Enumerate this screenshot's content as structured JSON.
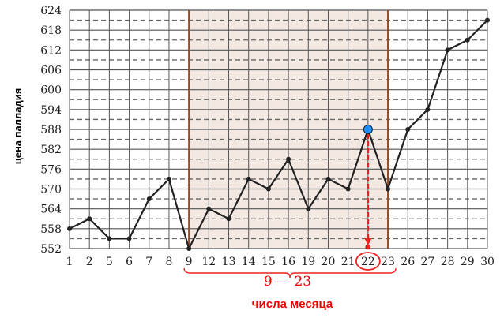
{
  "chart_data": {
    "type": "line",
    "title": "",
    "xlabel": "числа месяца",
    "ylabel": "цена палладия",
    "categories": [
      "1",
      "2",
      "5",
      "6",
      "7",
      "8",
      "9",
      "12",
      "13",
      "14",
      "15",
      "16",
      "19",
      "20",
      "21",
      "22",
      "23",
      "26",
      "27",
      "28",
      "29",
      "30"
    ],
    "series": [
      {
        "values": [
          558,
          561,
          555,
          555,
          567,
          573,
          552,
          564,
          561,
          573,
          570,
          579,
          564,
          573,
          570,
          588,
          570,
          588,
          594,
          612,
          615,
          621
        ]
      }
    ],
    "ylim": [
      552,
      624
    ],
    "yticks": [
      552,
      558,
      564,
      570,
      576,
      582,
      588,
      594,
      600,
      606,
      612,
      618,
      624
    ],
    "grid": true,
    "highlight_range": {
      "from": "9",
      "to": "23",
      "label": "9 — 23"
    },
    "highlight_point": {
      "x": "22",
      "y": 588
    },
    "colors": {
      "line": "#222222",
      "range_fill": "#f3e8e2",
      "range_border": "#9a4a22",
      "annotation": "#ee2222",
      "point": "#1e90ff"
    }
  }
}
